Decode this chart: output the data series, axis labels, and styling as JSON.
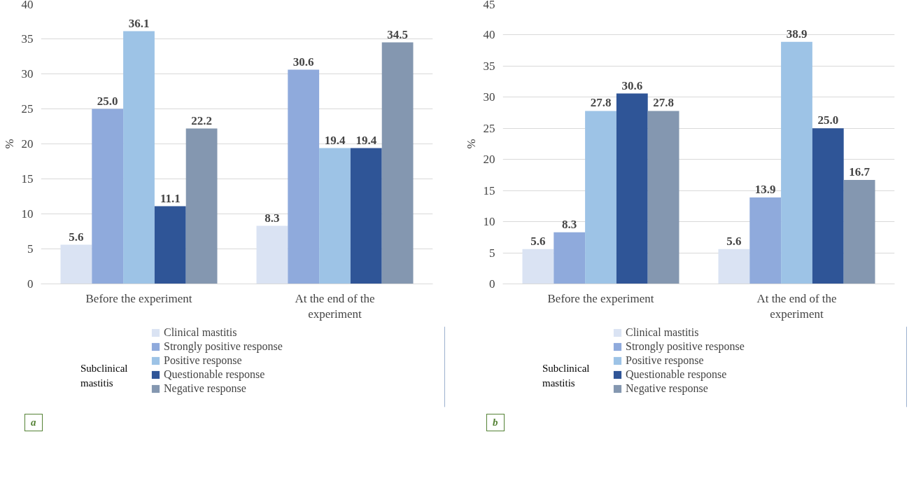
{
  "chart_data": [
    {
      "type": "bar",
      "ylabel": "%",
      "categories": [
        "Before the experiment",
        "At the end of the experiment"
      ],
      "ylim": [
        0,
        40
      ],
      "yticks": [
        0,
        5,
        10,
        15,
        20,
        25,
        30,
        35,
        40
      ],
      "grid": "y",
      "legend": "bottom",
      "annotations": [
        "Subclinical mastitis",
        "a"
      ],
      "series": [
        {
          "name": "Clinical mastitis",
          "color": "#dae3f3",
          "values": [
            5.6,
            8.3
          ],
          "value_labels": [
            "5.6",
            "8.3"
          ]
        },
        {
          "name": "Strongly positive response",
          "color": "#8faadc",
          "values": [
            25.0,
            30.6
          ],
          "value_labels": [
            "25.0",
            "30.6"
          ]
        },
        {
          "name": "Positive response",
          "color": "#9dc3e6",
          "values": [
            36.1,
            19.4
          ],
          "value_labels": [
            "36.1",
            "19.4"
          ]
        },
        {
          "name": "Questionable response",
          "color": "#2f5597",
          "values": [
            11.1,
            19.4
          ],
          "value_labels": [
            "11.1",
            "19.4"
          ]
        },
        {
          "name": "Negative response",
          "color": "#8497b0",
          "values": [
            22.2,
            34.5
          ],
          "value_labels": [
            "22.2",
            "34.5"
          ]
        }
      ]
    },
    {
      "type": "bar",
      "ylabel": "%",
      "categories": [
        "Before the experiment",
        "At the end of the experiment"
      ],
      "ylim": [
        0,
        45
      ],
      "yticks": [
        0,
        5,
        10,
        15,
        20,
        25,
        30,
        35,
        40,
        45
      ],
      "grid": "y",
      "legend": "bottom",
      "annotations": [
        "Subclinical mastitis",
        "b"
      ],
      "series": [
        {
          "name": "Clinical mastitis",
          "color": "#dae3f3",
          "values": [
            5.6,
            5.6
          ],
          "value_labels": [
            "5.6",
            "5.6"
          ]
        },
        {
          "name": "Strongly positive response",
          "color": "#8faadc",
          "values": [
            8.3,
            13.9
          ],
          "value_labels": [
            "8.3",
            "13.9"
          ]
        },
        {
          "name": "Positive response",
          "color": "#9dc3e6",
          "values": [
            27.8,
            38.9
          ],
          "value_labels": [
            "27.8",
            "38.9"
          ]
        },
        {
          "name": "Questionable response",
          "color": "#2f5597",
          "values": [
            30.6,
            25.0
          ],
          "value_labels": [
            "30.6",
            "25.0"
          ]
        },
        {
          "name": "Negative response",
          "color": "#8497b0",
          "values": [
            27.8,
            16.7
          ],
          "value_labels": [
            "27.8",
            "16.7"
          ]
        }
      ]
    }
  ]
}
